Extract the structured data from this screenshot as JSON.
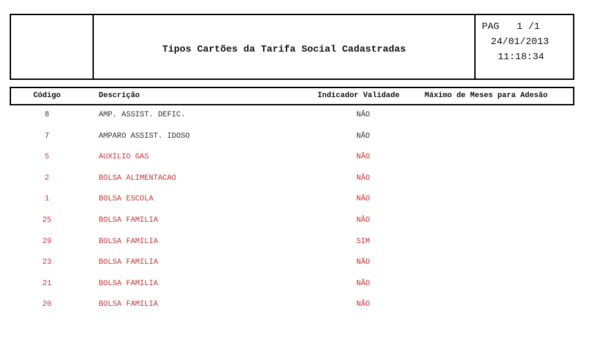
{
  "header": {
    "title": "Tipos Cartões da Tarifa Social Cadastradas",
    "page": "PAG   1 /1",
    "date": "24/01/2013",
    "time": "11:18:34"
  },
  "table": {
    "columns": [
      "Código",
      "Descrição",
      "Indicador Validade",
      "Máximo de Meses para Adesão"
    ],
    "rows": [
      {
        "code": 8,
        "description": "AMP. ASSIST. DEFIC.",
        "indicator": "NÃO",
        "color": "#333333"
      },
      {
        "code": 7,
        "description": "AMPARO ASSIST. IDOSO",
        "indicator": "NÃO",
        "color": "#333333"
      },
      {
        "code": 5,
        "description": "AUXILIO GAS",
        "indicator": "NÃO",
        "color": "#c83232"
      },
      {
        "code": 2,
        "description": "BOLSA ALIMENTACAO",
        "indicator": "NÃO",
        "color": "#c83232"
      },
      {
        "code": 1,
        "description": "BOLSA ESCOLA",
        "indicator": "NÃO",
        "color": "#c83232"
      },
      {
        "code": 25,
        "description": "BOLSA FAMILIA",
        "indicator": "NÃO",
        "color": "#c83232"
      },
      {
        "code": 29,
        "description": "BOLSA FAMILIA",
        "indicator": "SIM",
        "color": "#c83232"
      },
      {
        "code": 23,
        "description": "BOLSA FAMILIA",
        "indicator": "NÃO",
        "color": "#c83232"
      },
      {
        "code": 21,
        "description": "BOLSA FAMILIA",
        "indicator": "NÃO",
        "color": "#c83232"
      },
      {
        "code": 20,
        "description": "BOLSA FAMILIA",
        "indicator": "NÃO",
        "color": "#c83232"
      }
    ]
  }
}
